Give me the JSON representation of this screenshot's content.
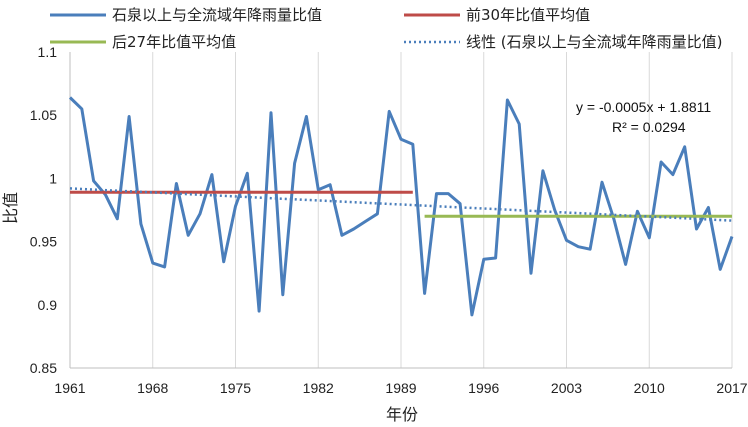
{
  "chart_data": {
    "type": "line",
    "title": "",
    "xlabel": "年份",
    "ylabel": "比值",
    "xlim": [
      1961,
      2017
    ],
    "ylim": [
      0.85,
      1.1
    ],
    "x_ticks": [
      1961,
      1968,
      1975,
      1982,
      1989,
      1996,
      2003,
      2010,
      2017
    ],
    "y_ticks": [
      "0.85",
      "0.9",
      "0.95",
      "1",
      "1.05",
      "1.1"
    ],
    "grid": "vertical",
    "legend_position": "top",
    "series": [
      {
        "name": "石泉以上与全流域年降雨量比值",
        "color": "#4a7ebb",
        "x": [
          1961,
          1962,
          1963,
          1964,
          1965,
          1966,
          1967,
          1968,
          1969,
          1970,
          1971,
          1972,
          1973,
          1974,
          1975,
          1976,
          1977,
          1978,
          1979,
          1980,
          1981,
          1982,
          1983,
          1984,
          1985,
          1986,
          1987,
          1988,
          1989,
          1990,
          1991,
          1992,
          1993,
          1994,
          1995,
          1996,
          1997,
          1998,
          1999,
          2000,
          2001,
          2002,
          2003,
          2004,
          2005,
          2006,
          2007,
          2008,
          2009,
          2010,
          2011,
          2012,
          2013,
          2014,
          2015,
          2016,
          2017
        ],
        "values": [
          1.064,
          1.055,
          0.998,
          0.987,
          0.968,
          1.049,
          0.964,
          0.933,
          0.93,
          0.996,
          0.955,
          0.972,
          1.003,
          0.934,
          0.978,
          1.004,
          0.895,
          1.052,
          0.908,
          1.012,
          1.049,
          0.991,
          0.995,
          0.955,
          0.96,
          0.966,
          0.972,
          1.053,
          1.031,
          1.027,
          0.909,
          0.988,
          0.988,
          0.98,
          0.892,
          0.936,
          0.937,
          1.062,
          1.043,
          0.925,
          1.006,
          0.975,
          0.951,
          0.946,
          0.944,
          0.997,
          0.968,
          0.932,
          0.974,
          0.953,
          1.013,
          1.003,
          1.025,
          0.96,
          0.977,
          0.928,
          0.954
        ]
      },
      {
        "name": "前30年比值平均值",
        "color": "#be4b48",
        "x": [
          1961,
          1990
        ],
        "values": [
          0.989,
          0.989
        ]
      },
      {
        "name": "后27年比值平均值",
        "color": "#98b954",
        "x": [
          1991,
          2017
        ],
        "values": [
          0.97,
          0.97
        ]
      },
      {
        "name": "线性 (石泉以上与全流域年降雨量比值)",
        "color": "#4a7ebb",
        "style": "dotted",
        "x": [
          1961,
          2017
        ],
        "values": [
          0.9921,
          0.9666
        ]
      }
    ],
    "annotations": [
      "y = -0.0005x + 1.8811",
      "R² = 0.0294"
    ]
  }
}
